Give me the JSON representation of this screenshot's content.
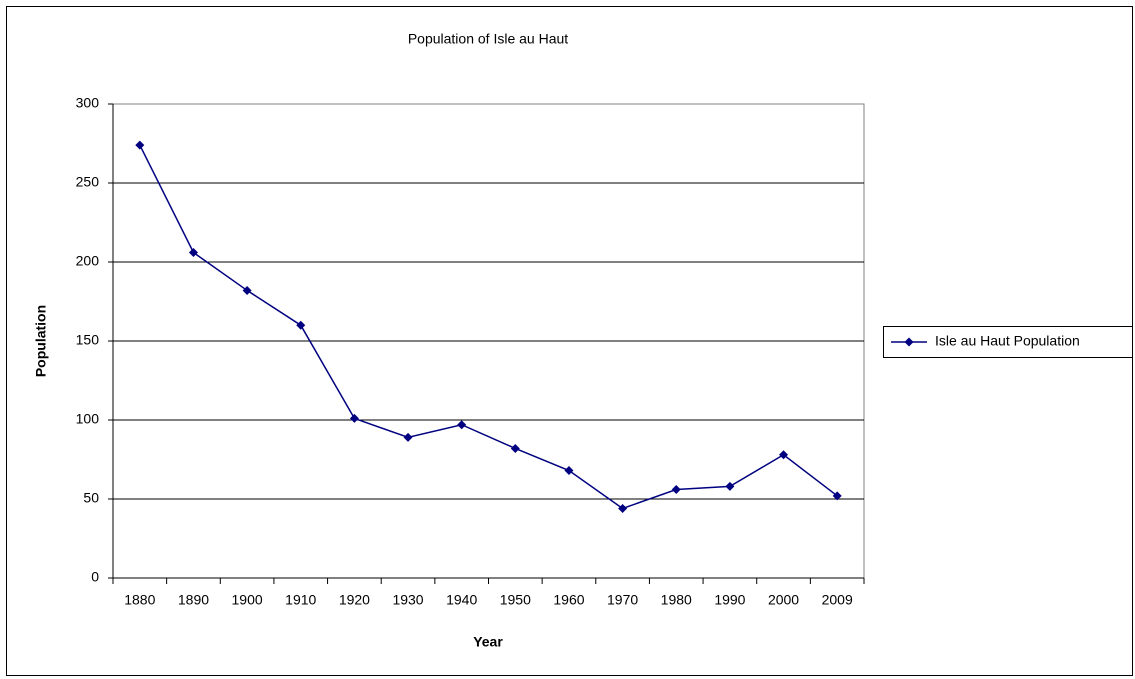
{
  "chart_data": {
    "type": "line",
    "title": "Population of Isle au Haut",
    "x_label": "Year",
    "y_label": "Population",
    "categories": [
      "1880",
      "1890",
      "1900",
      "1910",
      "1920",
      "1930",
      "1940",
      "1950",
      "1960",
      "1970",
      "1980",
      "1990",
      "2000",
      "2009"
    ],
    "series": [
      {
        "name": "Isle au Haut Population",
        "color": "#000080",
        "values": [
          274,
          206,
          182,
          160,
          101,
          89,
          97,
          82,
          68,
          44,
          56,
          58,
          78,
          52
        ]
      }
    ],
    "ylim": [
      0,
      300
    ],
    "yticks": [
      0,
      50,
      100,
      150,
      200,
      250,
      300
    ],
    "grid": true,
    "legend": "right"
  }
}
